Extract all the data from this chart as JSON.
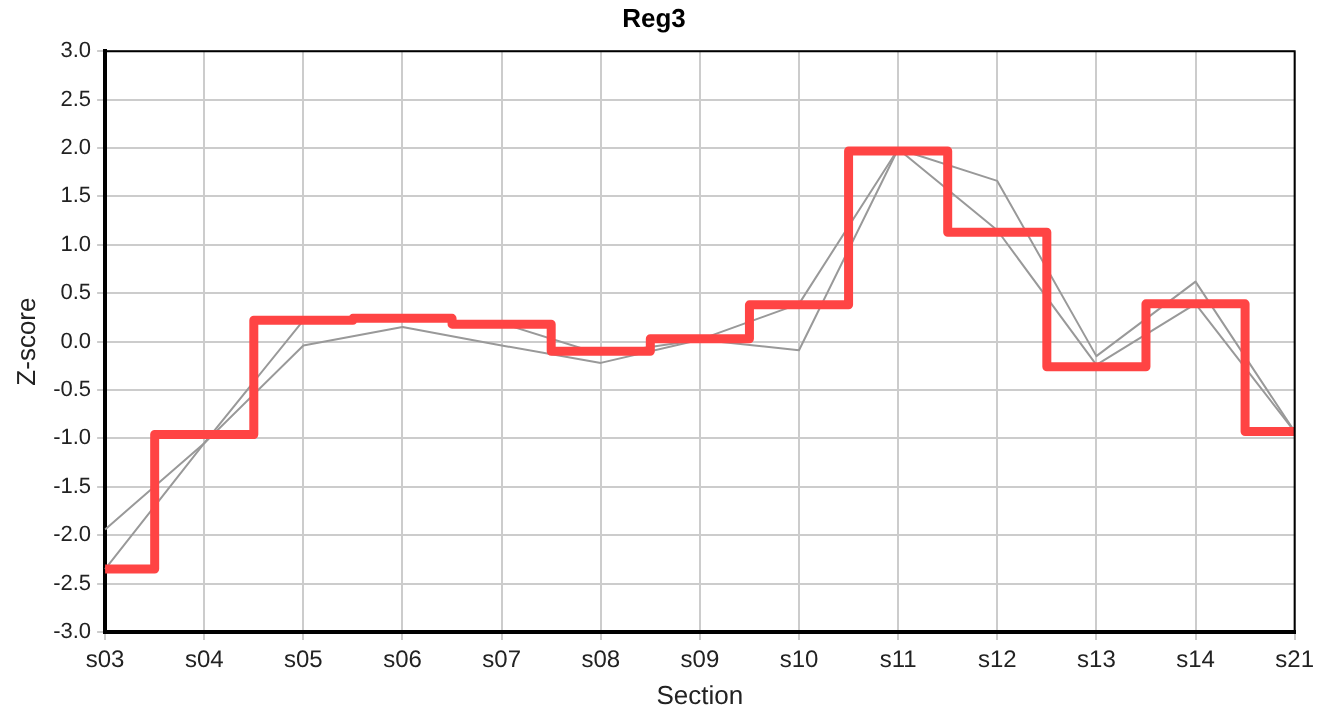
{
  "chart_data": {
    "type": "line",
    "title": "Reg3",
    "xlabel": "Section",
    "ylabel": "Z-score",
    "categories": [
      "s03",
      "s04",
      "s05",
      "s06",
      "s07",
      "s08",
      "s09",
      "s10",
      "s11",
      "s12",
      "s13",
      "s14",
      "s21"
    ],
    "series": [
      {
        "type": "line",
        "color": "#999999",
        "values": [
          -2.35,
          -1.05,
          0.22,
          0.24,
          0.19,
          -0.13,
          0.02,
          0.39,
          1.99,
          1.15,
          -0.24,
          0.39,
          -0.93
        ]
      },
      {
        "type": "line",
        "color": "#999999",
        "values": [
          -1.94,
          -1.05,
          -0.04,
          0.15,
          -0.04,
          -0.22,
          0.02,
          -0.09,
          1.99,
          1.66,
          -0.15,
          0.62,
          -0.93
        ]
      },
      {
        "type": "step",
        "color": "#ff4444",
        "values": [
          -2.35,
          -0.96,
          0.22,
          0.24,
          0.18,
          -0.1,
          0.03,
          0.38,
          1.97,
          1.13,
          -0.26,
          0.39,
          -0.93
        ]
      }
    ],
    "ylim": [
      -3,
      3
    ],
    "yticks": [
      {
        "value": -3,
        "label": "-3.0"
      },
      {
        "value": -2.5,
        "label": "-2.5"
      },
      {
        "value": -2,
        "label": "-2.0"
      },
      {
        "value": -1.5,
        "label": "-1.5"
      },
      {
        "value": -1,
        "label": "-1.0"
      },
      {
        "value": -0.5,
        "label": "-0.5"
      },
      {
        "value": 0,
        "label": "0.0"
      },
      {
        "value": 0.5,
        "label": "0.5"
      },
      {
        "value": 1,
        "label": "1.0"
      },
      {
        "value": 1.5,
        "label": "1.5"
      },
      {
        "value": 2,
        "label": "2.0"
      },
      {
        "value": 2.5,
        "label": "2.5"
      },
      {
        "value": 3,
        "label": "3.0"
      }
    ],
    "grid": true,
    "legend": false,
    "marker": "none"
  }
}
